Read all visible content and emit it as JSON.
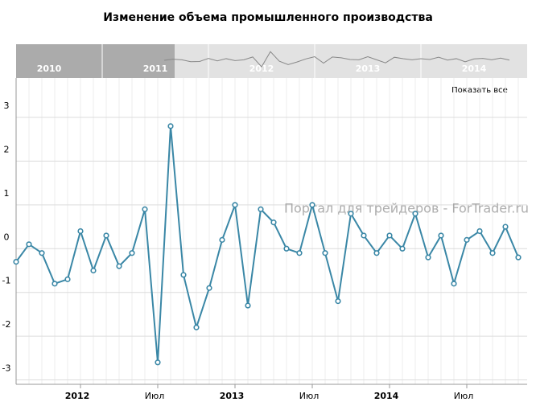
{
  "chart_data": {
    "type": "line",
    "title": "Изменение объема промышленного производства",
    "x": [
      "2011-08",
      "2011-09",
      "2011-10",
      "2011-11",
      "2011-12",
      "2012-01",
      "2012-02",
      "2012-03",
      "2012-04",
      "2012-05",
      "2012-06",
      "2012-07",
      "2012-08",
      "2012-09",
      "2012-10",
      "2012-11",
      "2012-12",
      "2013-01",
      "2013-02",
      "2013-03",
      "2013-04",
      "2013-05",
      "2013-06",
      "2013-07",
      "2013-08",
      "2013-09",
      "2013-10",
      "2013-11",
      "2013-12",
      "2014-01",
      "2014-02",
      "2014-03",
      "2014-04",
      "2014-05",
      "2014-06",
      "2014-07",
      "2014-08",
      "2014-09",
      "2014-10",
      "2014-11"
    ],
    "series": [
      {
        "color": "#3a87a6",
        "values": [
          -0.3,
          0.1,
          -0.1,
          -0.8,
          -0.7,
          0.4,
          -0.5,
          0.3,
          -0.4,
          -0.1,
          0.9,
          -2.6,
          2.8,
          -0.6,
          -1.8,
          -0.9,
          0.2,
          1.0,
          -1.3,
          0.9,
          0.6,
          0.0,
          -0.1,
          1.0,
          -0.1,
          -1.2,
          0.8,
          0.3,
          -0.1,
          0.3,
          0.0,
          0.8,
          -0.2,
          0.3,
          -0.8,
          0.2,
          0.4,
          -0.1,
          0.5,
          -0.2
        ]
      }
    ],
    "xlim": [
      "2011-08",
      "2014-11"
    ],
    "xticks": [
      {
        "value": "2012-01",
        "label": "2012"
      },
      {
        "value": "2012-07",
        "label": "Июл"
      },
      {
        "value": "2013-01",
        "label": "2013"
      },
      {
        "value": "2013-07",
        "label": "Июл"
      },
      {
        "value": "2014-01",
        "label": "2014"
      },
      {
        "value": "2014-07",
        "label": "Июл"
      }
    ],
    "ylim": [
      -3.1,
      3.9
    ],
    "yticks": [
      -3,
      -2,
      -1,
      0,
      1,
      2,
      3
    ],
    "grid": true,
    "watermark": "Портал для трейдеров - ForTrader.ru"
  },
  "scrollbar": {
    "years": [
      "2010",
      "2011",
      "2012",
      "2013",
      "2014"
    ]
  },
  "show_all": "Показать все"
}
